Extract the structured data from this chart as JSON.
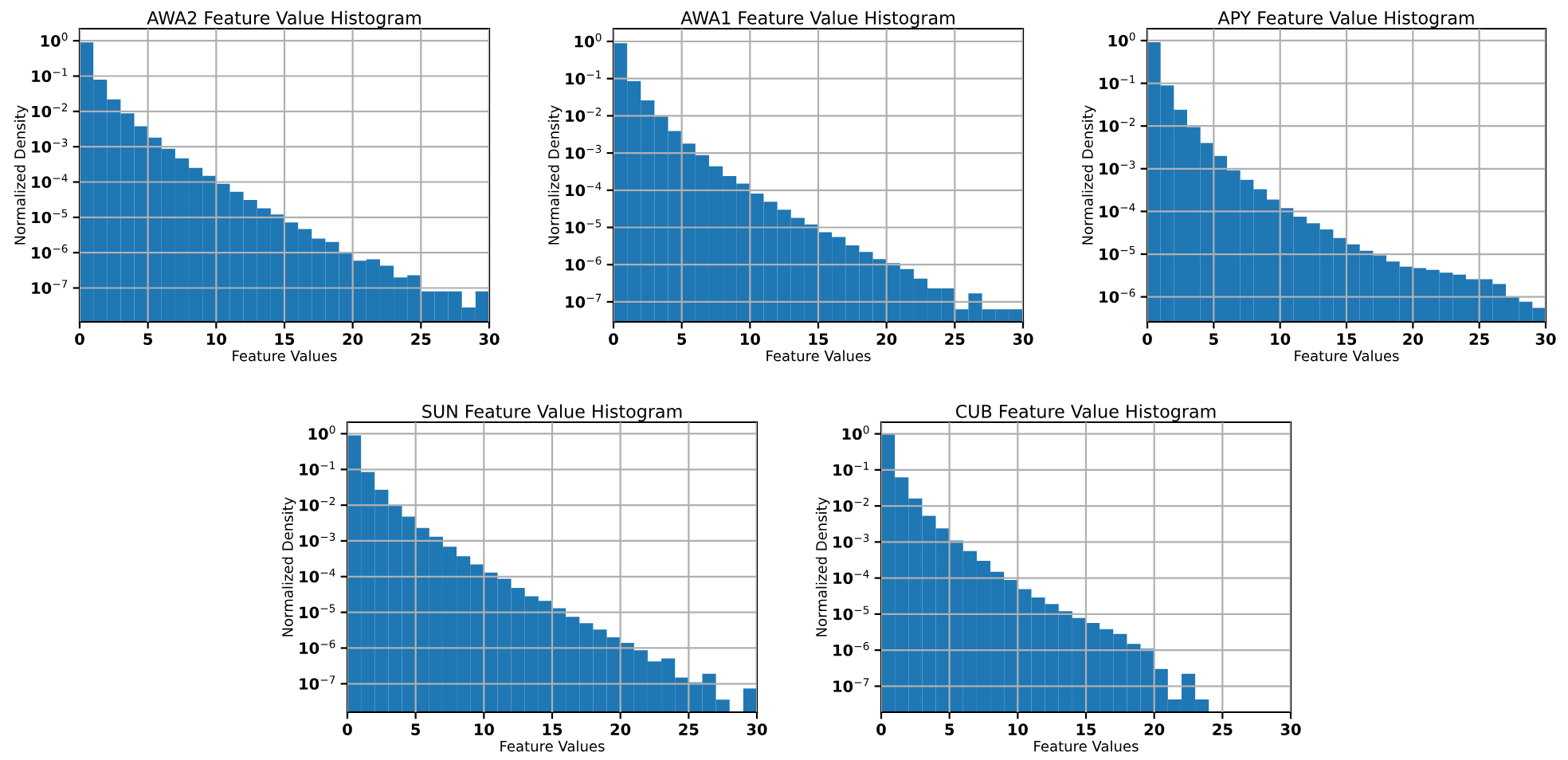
{
  "chart_data": [
    {
      "type": "histogram",
      "title": "AWA2 Feature Value Histogram",
      "xlabel": "Feature Values",
      "ylabel": "Normalized Density",
      "color": "#1f77b4",
      "log": "y",
      "grid": true,
      "bins": [
        0,
        1,
        2,
        3,
        4,
        5,
        6,
        7,
        8,
        9,
        10,
        11,
        12,
        13,
        14,
        15,
        16,
        17,
        18,
        19,
        20,
        21,
        22,
        23,
        24,
        25,
        26,
        27,
        28,
        29,
        30
      ],
      "values": [
        0.9,
        0.079,
        0.022,
        0.0088,
        0.0038,
        0.0018,
        0.00088,
        0.00047,
        0.00025,
        0.00015,
        8.9e-05,
        5.3e-05,
        3.1e-05,
        1.8e-05,
        1.2e-05,
        7.2e-06,
        4.7e-06,
        2.5e-06,
        2e-06,
        9.8e-07,
        5.9e-07,
        6.5e-07,
        4.3e-07,
        2e-07,
        2.3e-07,
        8e-08,
        8e-08,
        8e-08,
        2.8e-08,
        8e-08
      ],
      "xlim": [
        0,
        30
      ],
      "xticks": [
        0,
        5,
        10,
        15,
        20,
        25,
        30
      ],
      "ylim": [
        1.1e-08,
        2.2
      ],
      "yticks": [
        {
          "value": 1e-07,
          "label": "10$^{−7}$"
        },
        {
          "value": 1e-06,
          "label": "10$^{−6}$"
        },
        {
          "value": 1e-05,
          "label": "10$^{−5}$"
        },
        {
          "value": 0.0001,
          "label": "10$^{−4}$"
        },
        {
          "value": 0.001,
          "label": "10$^{−3}$"
        },
        {
          "value": 0.01,
          "label": "10$^{−2}$"
        },
        {
          "value": 0.1,
          "label": "10$^{−1}$"
        },
        {
          "value": 1,
          "label": "10$^{0}$"
        }
      ]
    },
    {
      "type": "histogram",
      "title": "AWA1 Feature Value Histogram",
      "xlabel": "Feature Values",
      "ylabel": "Normalized Density",
      "color": "#1f77b4",
      "log": "y",
      "grid": true,
      "bins": [
        0,
        1,
        2,
        3,
        4,
        5,
        6,
        7,
        8,
        9,
        10,
        11,
        12,
        13,
        14,
        15,
        16,
        17,
        18,
        19,
        20,
        21,
        22,
        23,
        24,
        25,
        26,
        27,
        28,
        29,
        30
      ],
      "values": [
        0.9,
        0.086,
        0.026,
        0.0096,
        0.0039,
        0.0018,
        0.00088,
        0.00044,
        0.00024,
        0.00015,
        8.1e-05,
        4.9e-05,
        3e-05,
        1.8e-05,
        1.2e-05,
        7.4e-06,
        5.5e-06,
        3.3e-06,
        2.2e-06,
        1.4e-06,
        1.1e-06,
        7.6e-07,
        4.2e-07,
        2.3e-07,
        2.3e-07,
        6.3e-08,
        1.7e-07,
        6.3e-08,
        6.3e-08,
        6.3e-08
      ],
      "xlim": [
        0,
        30
      ],
      "xticks": [
        0,
        5,
        10,
        15,
        20,
        25,
        30
      ],
      "ylim": [
        2.9e-08,
        2.2
      ],
      "yticks": [
        {
          "value": 1e-07,
          "label": "10$^{−7}$"
        },
        {
          "value": 1e-06,
          "label": "10$^{−6}$"
        },
        {
          "value": 1e-05,
          "label": "10$^{−5}$"
        },
        {
          "value": 0.0001,
          "label": "10$^{−4}$"
        },
        {
          "value": 0.001,
          "label": "10$^{−3}$"
        },
        {
          "value": 0.01,
          "label": "10$^{−2}$"
        },
        {
          "value": 0.1,
          "label": "10$^{−1}$"
        },
        {
          "value": 1,
          "label": "10$^{0}$"
        }
      ]
    },
    {
      "type": "histogram",
      "title": "APY Feature Value Histogram",
      "xlabel": "Feature Values",
      "ylabel": "Normalized Density",
      "color": "#1f77b4",
      "log": "y",
      "grid": true,
      "bins": [
        0,
        1,
        2,
        3,
        4,
        5,
        6,
        7,
        8,
        9,
        10,
        11,
        12,
        13,
        14,
        15,
        16,
        17,
        18,
        19,
        20,
        21,
        22,
        23,
        24,
        25,
        26,
        27,
        28,
        29,
        30
      ],
      "values": [
        0.92,
        0.089,
        0.024,
        0.0094,
        0.004,
        0.002,
        0.00092,
        0.00055,
        0.00033,
        0.00019,
        0.00012,
        7.5e-05,
        5.3e-05,
        3.8e-05,
        2.4e-05,
        1.7e-05,
        1.2e-05,
        9.4e-06,
        6.7e-06,
        5.1e-06,
        4.7e-06,
        4.3e-06,
        3.7e-06,
        3.3e-06,
        2.6e-06,
        2.6e-06,
        2e-06,
        1e-06,
        7.7e-07,
        5.5e-07
      ],
      "xlim": [
        0,
        30
      ],
      "xticks": [
        0,
        5,
        10,
        15,
        20,
        25,
        30
      ],
      "ylim": [
        2.6e-07,
        1.9
      ],
      "yticks": [
        {
          "value": 1e-06,
          "label": "10$^{−6}$"
        },
        {
          "value": 1e-05,
          "label": "10$^{−5}$"
        },
        {
          "value": 0.0001,
          "label": "10$^{−4}$"
        },
        {
          "value": 0.001,
          "label": "10$^{−3}$"
        },
        {
          "value": 0.01,
          "label": "10$^{−2}$"
        },
        {
          "value": 0.1,
          "label": "10$^{−1}$"
        },
        {
          "value": 1,
          "label": "10$^{0}$"
        }
      ]
    },
    {
      "type": "histogram",
      "title": "SUN Feature Value Histogram",
      "xlabel": "Feature Values",
      "ylabel": "Normalized Density",
      "color": "#1f77b4",
      "log": "y",
      "grid": true,
      "bins": [
        0,
        1,
        2,
        3,
        4,
        5,
        6,
        7,
        8,
        9,
        10,
        11,
        12,
        13,
        14,
        15,
        16,
        17,
        18,
        19,
        20,
        21,
        22,
        23,
        24,
        25,
        26,
        27,
        28,
        29,
        30
      ],
      "values": [
        0.9,
        0.085,
        0.027,
        0.0098,
        0.0048,
        0.0023,
        0.0013,
        0.00069,
        0.00037,
        0.00022,
        0.00013,
        8.7e-05,
        4.8e-05,
        2.8e-05,
        2.1e-05,
        1.3e-05,
        7.5e-06,
        5e-06,
        3.3e-06,
        2e-06,
        1.4e-06,
        8.7e-07,
        4.2e-07,
        5.1e-07,
        1.5e-07,
        1.1e-07,
        1.9e-07,
        3.6e-08,
        null,
        7.4e-08
      ],
      "xlim": [
        0,
        30
      ],
      "xticks": [
        0,
        5,
        10,
        15,
        20,
        25,
        30
      ],
      "ylim": [
        1.6e-08,
        2.1
      ],
      "yticks": [
        {
          "value": 1e-07,
          "label": "10$^{−7}$"
        },
        {
          "value": 1e-06,
          "label": "10$^{−6}$"
        },
        {
          "value": 1e-05,
          "label": "10$^{−5}$"
        },
        {
          "value": 0.0001,
          "label": "10$^{−4}$"
        },
        {
          "value": 0.001,
          "label": "10$^{−3}$"
        },
        {
          "value": 0.01,
          "label": "10$^{−2}$"
        },
        {
          "value": 0.1,
          "label": "10$^{−1}$"
        },
        {
          "value": 1,
          "label": "10$^{0}$"
        }
      ]
    },
    {
      "type": "histogram",
      "title": "CUB Feature Value Histogram",
      "xlabel": "Feature Values",
      "ylabel": "Normalized Density",
      "color": "#1f77b4",
      "log": "y",
      "grid": true,
      "bins": [
        0,
        1,
        2,
        3,
        4,
        5,
        6,
        7,
        8,
        9,
        10,
        11,
        12,
        13,
        14,
        15,
        16,
        17,
        18,
        19,
        20,
        21,
        22,
        23,
        24,
        25,
        26,
        27,
        28,
        29,
        30
      ],
      "values": [
        0.98,
        0.062,
        0.016,
        0.0053,
        0.0024,
        0.0011,
        0.00056,
        0.0003,
        0.00015,
        8.9e-05,
        4.9e-05,
        2.9e-05,
        1.9e-05,
        1.2e-05,
        7.8e-06,
        5.7e-06,
        3.8e-06,
        2.8e-06,
        1.5e-06,
        1.1e-06,
        3e-07,
        4.3e-08,
        2.2e-07,
        4.3e-08,
        null,
        null,
        null,
        null,
        null,
        null
      ],
      "xlim": [
        0,
        30
      ],
      "xticks": [
        0,
        5,
        10,
        15,
        20,
        25,
        30
      ],
      "ylim": [
        1.9e-08,
        2.1
      ],
      "yticks": [
        {
          "value": 1e-07,
          "label": "10$^{−7}$"
        },
        {
          "value": 1e-06,
          "label": "10$^{−6}$"
        },
        {
          "value": 1e-05,
          "label": "10$^{−5}$"
        },
        {
          "value": 0.0001,
          "label": "10$^{−4}$"
        },
        {
          "value": 0.001,
          "label": "10$^{−3}$"
        },
        {
          "value": 0.01,
          "label": "10$^{−2}$"
        },
        {
          "value": 0.1,
          "label": "10$^{−1}$"
        },
        {
          "value": 1,
          "label": "10$^{0}$"
        }
      ]
    }
  ]
}
